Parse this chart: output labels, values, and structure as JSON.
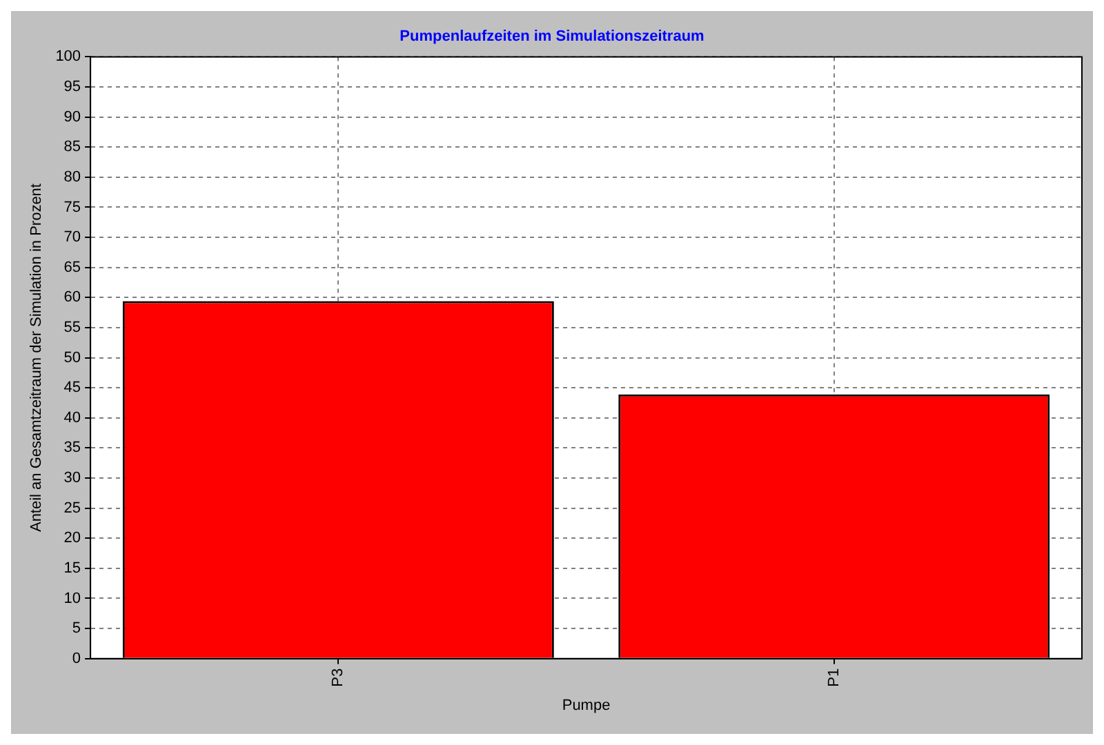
{
  "chart_data": {
    "type": "bar",
    "title": "Pumpenlaufzeiten im Simulationszeitraum",
    "xlabel": "Pumpe",
    "ylabel": "Anteil an Gesamtzeitraum der Simulation in Prozent",
    "categories": [
      "P3",
      "P1"
    ],
    "values": [
      59.4,
      43.9
    ],
    "color": "#ff0000",
    "ylim": [
      0,
      100
    ],
    "yticks": [
      0,
      5,
      10,
      15,
      20,
      25,
      30,
      35,
      40,
      45,
      50,
      55,
      60,
      65,
      70,
      75,
      80,
      85,
      90,
      95,
      100
    ],
    "grid": true,
    "legend": false
  }
}
